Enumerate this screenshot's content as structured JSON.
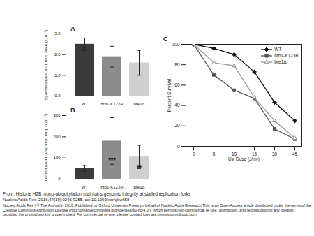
{
  "chart_data": [
    {
      "type": "bar",
      "title": "A",
      "ylabel": "Spontaneous CAN1 mut. Rate (x10⁻⁷)",
      "categories": [
        "WT",
        "htb1-K123R",
        "bre1Δ"
      ],
      "values": [
        2.5,
        1.9,
        1.6
      ],
      "errors": [
        0.3,
        0.5,
        0.6
      ],
      "colors": [
        "#3a3a3a",
        "#8c8c8c",
        "#cfcfcf"
      ],
      "ylim": [
        0,
        3
      ],
      "yticks": [
        0,
        1,
        2,
        3
      ]
    },
    {
      "type": "bar",
      "title": "B",
      "ylabel": "UV-Induced CAN1 mut. freq. (x10⁻⁷)",
      "categories": [
        "WT",
        "htb1-K123R",
        "bre1Δ"
      ],
      "values": [
        50,
        180,
        105
      ],
      "errors": [
        15,
        110,
        55
      ],
      "annotations": [
        null,
        "***",
        "**"
      ],
      "colors": [
        "#3a3a3a",
        "#8c8c8c",
        "#cfcfcf"
      ],
      "ylim": [
        0,
        300
      ],
      "yticks": [
        0,
        100,
        200,
        300
      ]
    },
    {
      "type": "line",
      "title": "C",
      "xlabel": "UV Dose (J/m²)",
      "ylabel": "Percent Survival",
      "categories": [
        "0",
        "5",
        "10",
        "15",
        "30",
        "45"
      ],
      "ylim": [
        0,
        100
      ],
      "yticks": [
        0,
        20,
        40,
        60,
        80,
        100
      ],
      "legend": "top-right",
      "series": [
        {
          "name": "WT",
          "color": "#111111",
          "marker": "diamond",
          "values": [
            100,
            96,
            90,
            73,
            43,
            25
          ]
        },
        {
          "name": "htb1-K123R",
          "color": "#555555",
          "marker": "square",
          "values": [
            100,
            70,
            55,
            47,
            17,
            7
          ]
        },
        {
          "name": "bre1Δ",
          "color": "#999999",
          "marker": "open_triangle",
          "values": [
            100,
            82,
            79,
            48,
            25,
            8
          ]
        }
      ]
    }
  ],
  "source": {
    "from": "From: Histone H2B mono-ubiquitylation maintains genomic integrity at stalled replication forks",
    "citation": "Nucleic Acids Res. 2016;44(19):9245-9255. doi:10.1093/nar/gkw658",
    "license": "Nucleic Acids Res | © The Author(s) 2016. Published by Oxford University Press on behalf of Nucleic Acids Research.This is an Open Access article distributed under the terms of the Creative Commons Attribution License (http://creativecommons.org/licenses/by-nc/4.0/), which permits non-commercial re-use, distribution, and reproduction in any medium, provided the original work is properly cited. For commercial re-use, please contact journals.permissions@oup.com"
  }
}
